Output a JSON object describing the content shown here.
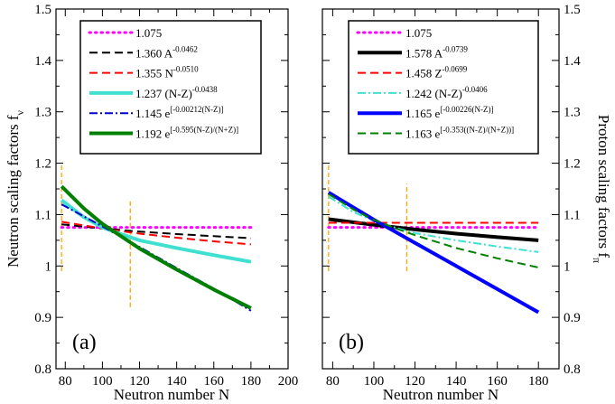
{
  "chart_data": [
    {
      "type": "line",
      "panel_label": "(a)",
      "xlabel": "Neutron  number  N",
      "ylabel": "Neutron  scaling  factors  f",
      "ylabel_sub": "ν",
      "xlim": [
        75,
        200
      ],
      "ylim": [
        0.8,
        1.5
      ],
      "xticks": [
        "80",
        "100",
        "120",
        "140",
        "160",
        "180",
        "200"
      ],
      "yticks": [
        "0.8",
        "0.9",
        "1",
        "1.1",
        "1.2",
        "1.3",
        "1.4",
        "1.5"
      ],
      "vlines": [
        {
          "x": 78,
          "y": [
            0.99,
            1.2
          ],
          "color": "#ffa500"
        },
        {
          "x": 115,
          "y": [
            0.92,
            1.13
          ],
          "color": "#ffa500"
        }
      ],
      "series": [
        {
          "name": "1.075",
          "base": "1.075",
          "exp": "",
          "color": "#ff00ff",
          "dash": "dotted",
          "width": 3,
          "x": [
            78,
            180
          ],
          "values": [
            1.075,
            1.075
          ]
        },
        {
          "name": "1.360 A^-0.0462",
          "base": "1.360 A",
          "exp": "-0.0462",
          "color": "#000000",
          "dash": "dash",
          "width": 2,
          "x": [
            78,
            100,
            120,
            140,
            160,
            180
          ],
          "values": [
            1.081,
            1.073,
            1.067,
            1.062,
            1.058,
            1.054
          ]
        },
        {
          "name": "1.355 N^-0.0510",
          "base": "1.355 N",
          "exp": "-0.0510",
          "color": "#ff0000",
          "dash": "dash",
          "width": 2,
          "x": [
            78,
            100,
            120,
            140,
            160,
            180
          ],
          "values": [
            1.086,
            1.073,
            1.063,
            1.055,
            1.048,
            1.042
          ]
        },
        {
          "name": "1.237 (N-Z)^-0.0438",
          "base": "1.237 (N-Z)",
          "exp": "-0.0438",
          "color": "#40e0d0",
          "dash": "solid",
          "width": 4,
          "x": [
            78,
            90,
            100,
            110,
            120,
            140,
            160,
            180
          ],
          "values": [
            1.128,
            1.095,
            1.075,
            1.062,
            1.05,
            1.035,
            1.021,
            1.008
          ]
        },
        {
          "name": "1.145 e^[-0.00212(N-Z)]",
          "base": "1.145 e",
          "exp": "[-0.00212(N-Z)]",
          "color": "#0000cd",
          "dash": "dashdot",
          "width": 2,
          "x": [
            78,
            100,
            120,
            140,
            160,
            180
          ],
          "values": [
            1.12,
            1.077,
            1.037,
            0.996,
            0.956,
            0.913
          ]
        },
        {
          "name": "1.192 e^[-0.595(N-Z)/(N+Z)]",
          "base": "1.192 e",
          "exp": "[-0.595(N-Z)/(N+Z)]",
          "color": "#008000",
          "dash": "solid",
          "width": 4,
          "x": [
            78,
            90,
            100,
            110,
            120,
            140,
            160,
            180
          ],
          "values": [
            1.155,
            1.112,
            1.082,
            1.058,
            1.034,
            0.993,
            0.954,
            0.918
          ]
        }
      ]
    },
    {
      "type": "line",
      "panel_label": "(b)",
      "xlabel": "Neutron  number  N",
      "ylabel": "Proton  scaling  factors  f",
      "ylabel_sub": "π",
      "xlim": [
        75,
        190
      ],
      "ylim": [
        0.8,
        1.5
      ],
      "xticks": [
        "80",
        "100",
        "120",
        "140",
        "160",
        "180"
      ],
      "yticks": [
        "0.8",
        "0.9",
        "1",
        "1.1",
        "1.2",
        "1.3",
        "1.4",
        "1.5"
      ],
      "vlines": [
        {
          "x": 78,
          "y": [
            0.99,
            1.2
          ],
          "color": "#ffa500"
        },
        {
          "x": 116,
          "y": [
            0.99,
            1.16
          ],
          "color": "#ffa500"
        }
      ],
      "series": [
        {
          "name": "1.075",
          "base": "1.075",
          "exp": "",
          "color": "#ff00ff",
          "dash": "dotted",
          "width": 3,
          "x": [
            78,
            180
          ],
          "values": [
            1.075,
            1.075
          ]
        },
        {
          "name": "1.578 A^-0.0739",
          "base": "1.578 A",
          "exp": "-0.0739",
          "color": "#000000",
          "dash": "solid",
          "width": 4,
          "x": [
            78,
            100,
            120,
            140,
            160,
            180
          ],
          "values": [
            1.091,
            1.08,
            1.071,
            1.063,
            1.056,
            1.05
          ]
        },
        {
          "name": "1.458 Z^-0.0699",
          "base": "1.458 Z",
          "exp": "-0.0699",
          "color": "#ff0000",
          "dash": "dash",
          "width": 2,
          "x": [
            78,
            180
          ],
          "values": [
            1.084,
            1.084
          ]
        },
        {
          "name": "1.242 (N-Z)^-0.0406",
          "base": "1.242 (N-Z)",
          "exp": "-0.0406",
          "color": "#40e0d0",
          "dash": "dashdot",
          "width": 2,
          "x": [
            78,
            90,
            100,
            110,
            120,
            140,
            160,
            180
          ],
          "values": [
            1.135,
            1.105,
            1.088,
            1.075,
            1.064,
            1.05,
            1.038,
            1.027
          ]
        },
        {
          "name": "1.165 e^[-0.00226(N-Z)]",
          "base": "1.165 e",
          "exp": "[-0.00226(N-Z)]",
          "color": "#0000ff",
          "dash": "solid",
          "width": 4,
          "x": [
            78,
            100,
            120,
            140,
            160,
            180
          ],
          "values": [
            1.143,
            1.09,
            1.045,
            1.0,
            0.955,
            0.91
          ]
        },
        {
          "name": "1.163 e^[-0.353((N-Z)/(N+Z))]",
          "base": "1.163 e",
          "exp": "[-0.353((N-Z)/(N+Z))]",
          "color": "#008000",
          "dash": "dash",
          "width": 2,
          "x": [
            78,
            90,
            100,
            110,
            120,
            140,
            160,
            180
          ],
          "values": [
            1.14,
            1.11,
            1.09,
            1.074,
            1.06,
            1.035,
            1.015,
            0.997
          ]
        }
      ]
    }
  ]
}
